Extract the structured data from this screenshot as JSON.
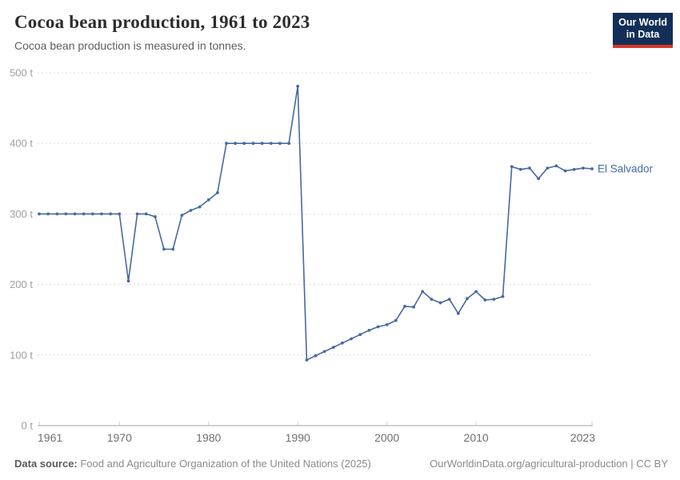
{
  "header": {
    "title": "Cocoa bean production, 1961 to 2023",
    "subtitle": "Cocoa bean production is measured in tonnes.",
    "logo": {
      "line1": "Our World",
      "line2": "in Data"
    }
  },
  "chart_data": {
    "type": "line",
    "title": "Cocoa bean production, 1961 to 2023",
    "unit": "tonnes",
    "grid": "horizontal dashed",
    "legend_position": "end-of-line label",
    "xlim": [
      1961,
      2023
    ],
    "ylim": [
      0,
      500
    ],
    "xticks": [
      1961,
      1970,
      1980,
      1990,
      2000,
      2010,
      2023
    ],
    "yticks": [
      0,
      100,
      200,
      300,
      400,
      500
    ],
    "ytick_labels": [
      "0 t",
      "100 t",
      "200 t",
      "300 t",
      "400 t",
      "500 t"
    ],
    "x": [
      1961,
      1962,
      1963,
      1964,
      1965,
      1966,
      1967,
      1968,
      1969,
      1970,
      1971,
      1972,
      1973,
      1974,
      1975,
      1976,
      1977,
      1978,
      1979,
      1980,
      1981,
      1982,
      1983,
      1984,
      1985,
      1986,
      1987,
      1988,
      1989,
      1990,
      1991,
      1992,
      1993,
      1994,
      1995,
      1996,
      1997,
      1998,
      1999,
      2000,
      2001,
      2002,
      2003,
      2004,
      2005,
      2006,
      2007,
      2008,
      2009,
      2010,
      2011,
      2012,
      2013,
      2014,
      2015,
      2016,
      2017,
      2018,
      2019,
      2020,
      2021,
      2022,
      2023
    ],
    "series": [
      {
        "name": "El Salvador",
        "color": "#4769a2",
        "values": [
          300,
          300,
          300,
          300,
          300,
          300,
          300,
          300,
          300,
          300,
          205,
          300,
          300,
          296,
          250,
          250,
          298,
          305,
          310,
          320,
          330,
          400,
          400,
          400,
          400,
          400,
          400,
          400,
          400,
          481,
          93,
          99,
          105,
          111,
          117,
          123,
          129,
          135,
          140,
          143,
          149,
          169,
          168,
          190,
          179,
          174,
          179,
          159,
          180,
          190,
          178,
          179,
          183,
          367,
          363,
          365,
          350,
          365,
          368,
          361,
          363,
          365,
          364
        ]
      }
    ]
  },
  "footer": {
    "source_label": "Data source:",
    "source_text": " Food and Agriculture Organization of the United Nations (2025)",
    "credit": "OurWorldinData.org/agricultural-production | CC BY"
  },
  "colors": {
    "series": "#4769a2",
    "gridline": "#dcdcdc",
    "axis_line": "#a5a5a5",
    "tick_mark": "#cccccc",
    "ytick_text": "#9e9e9e",
    "xtick_text": "#6f6f6f",
    "logo_bg": "#132f57",
    "logo_accent": "#d7372a"
  }
}
